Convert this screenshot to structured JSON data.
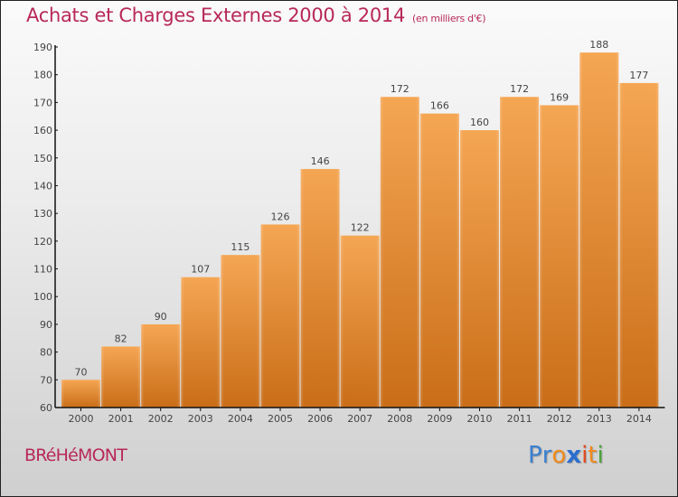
{
  "header": {
    "title": "Achats et Charges Externes 2000 à 2014",
    "subtitle": "(en milliers d'€)"
  },
  "footer": {
    "town": "BRéHéMONT",
    "logo": {
      "letters": [
        "P",
        "r",
        "o",
        "x",
        "i",
        "t",
        "i"
      ],
      "colors": [
        "#3a7fd0",
        "#3a7fd0",
        "#f08a1c",
        "#2b6fcf",
        "#e04a20",
        "#f08a1c",
        "#4aa33a"
      ]
    }
  },
  "colors": {
    "accent": "#b8285a",
    "bar_top": "#f5a653",
    "bar_bottom": "#c96d18",
    "axis": "#111111",
    "tick_text": "#444444"
  },
  "chart_data": {
    "type": "bar",
    "title": "Achats et Charges Externes 2000 à 2014",
    "subtitle": "(en milliers d'€)",
    "xlabel": "",
    "ylabel": "",
    "categories": [
      "2000",
      "2001",
      "2002",
      "2003",
      "2004",
      "2005",
      "2006",
      "2007",
      "2008",
      "2009",
      "2010",
      "2011",
      "2012",
      "2013",
      "2014"
    ],
    "values": [
      70,
      82,
      90,
      107,
      115,
      126,
      146,
      122,
      172,
      166,
      160,
      172,
      169,
      188,
      177
    ],
    "ylim": [
      60,
      190
    ],
    "yticks": [
      60,
      70,
      80,
      90,
      100,
      110,
      120,
      130,
      140,
      150,
      160,
      170,
      180,
      190
    ],
    "grid": false,
    "legend": "none",
    "data_labels": true
  }
}
